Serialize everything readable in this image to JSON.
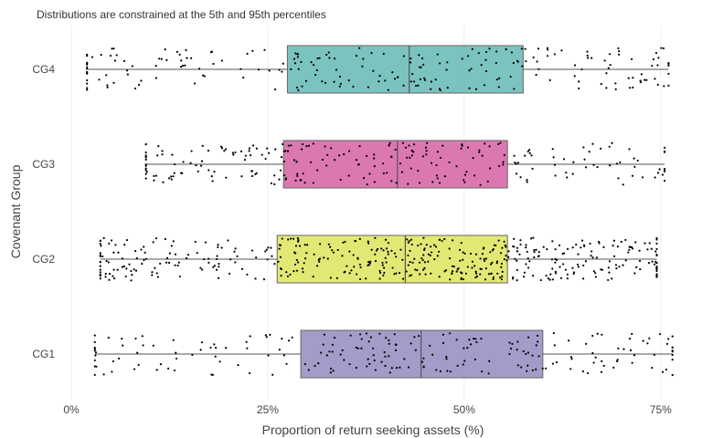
{
  "chart_data": {
    "type": "box",
    "title": "Distributions are constrained at the 5th and 95th percentiles",
    "xlabel": "Proportion of return seeking assets (%)",
    "ylabel": "Covenant Group",
    "xlim": [
      0,
      0.77
    ],
    "xticks": [
      {
        "value": 0,
        "label": "0%"
      },
      {
        "value": 0.25,
        "label": "25%"
      },
      {
        "value": 0.5,
        "label": "50%"
      },
      {
        "value": 0.75,
        "label": "75%"
      }
    ],
    "categories": [
      "CG4",
      "CG3",
      "CG2",
      "CG1"
    ],
    "grid": true,
    "series": [
      {
        "category": "CG4",
        "min": 0.02,
        "q1": 0.275,
        "median": 0.43,
        "q3": 0.575,
        "max": 0.76,
        "color": "#6dbdb7",
        "n_points": 230
      },
      {
        "category": "CG3",
        "min": 0.095,
        "q1": 0.27,
        "median": 0.415,
        "q3": 0.555,
        "max": 0.755,
        "color": "#d96aa8",
        "n_points": 250
      },
      {
        "category": "CG2",
        "min": 0.037,
        "q1": 0.262,
        "median": 0.425,
        "q3": 0.555,
        "max": 0.745,
        "color": "#e0e665",
        "n_points": 500
      },
      {
        "category": "CG1",
        "min": 0.03,
        "q1": 0.292,
        "median": 0.445,
        "q3": 0.6,
        "max": 0.765,
        "color": "#9a92c4",
        "n_points": 220
      }
    ]
  }
}
